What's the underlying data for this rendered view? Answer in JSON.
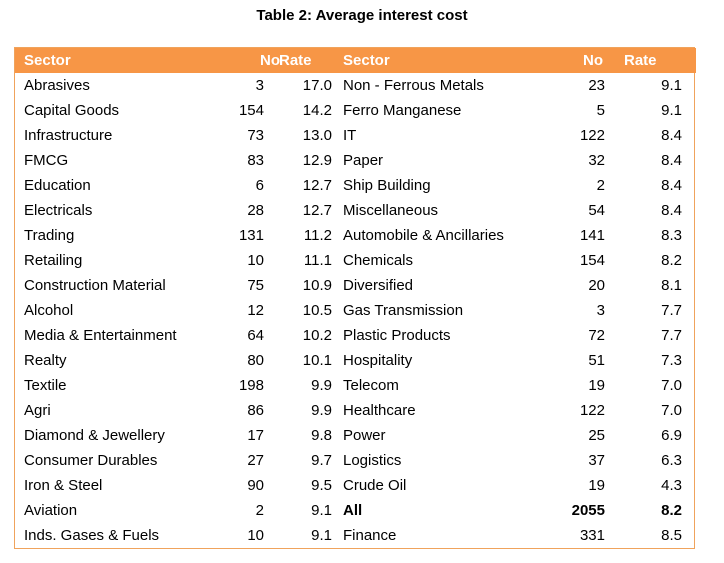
{
  "title": "Table 2: Average interest cost",
  "headers": [
    "Sector",
    "No",
    "Rate",
    "Sector",
    "No",
    "Rate"
  ],
  "rows": [
    [
      "Abrasives",
      "3",
      "17.0",
      "Non - Ferrous Metals",
      "23",
      "9.1"
    ],
    [
      "Capital Goods",
      "154",
      "14.2",
      "Ferro Manganese",
      "5",
      "9.1"
    ],
    [
      "Infrastructure",
      "73",
      "13.0",
      "IT",
      "122",
      "8.4"
    ],
    [
      "FMCG",
      "83",
      "12.9",
      "Paper",
      "32",
      "8.4"
    ],
    [
      "Education",
      "6",
      "12.7",
      "Ship Building",
      "2",
      "8.4"
    ],
    [
      "Electricals",
      "28",
      "12.7",
      "Miscellaneous",
      "54",
      "8.4"
    ],
    [
      "Trading",
      "131",
      "11.2",
      "Automobile & Ancillaries",
      "141",
      "8.3"
    ],
    [
      "Retailing",
      "10",
      "11.1",
      "Chemicals",
      "154",
      "8.2"
    ],
    [
      "Construction Material",
      "75",
      "10.9",
      "Diversified",
      "20",
      "8.1"
    ],
    [
      "Alcohol",
      "12",
      "10.5",
      "Gas Transmission",
      "3",
      "7.7"
    ],
    [
      "Media & Entertainment",
      "64",
      "10.2",
      "Plastic Products",
      "72",
      "7.7"
    ],
    [
      "Realty",
      "80",
      "10.1",
      "Hospitality",
      "51",
      "7.3"
    ],
    [
      "Textile",
      "198",
      "9.9",
      "Telecom",
      "19",
      "7.0"
    ],
    [
      "Agri",
      "86",
      "9.9",
      "Healthcare",
      "122",
      "7.0"
    ],
    [
      "Diamond  &  Jewellery",
      "17",
      "9.8",
      "Power",
      "25",
      "6.9"
    ],
    [
      "Consumer Durables",
      "27",
      "9.7",
      "Logistics",
      "37",
      "6.3"
    ],
    [
      "Iron & Steel",
      "90",
      "9.5",
      "Crude Oil",
      "19",
      "4.3"
    ],
    [
      "Aviation",
      "2",
      "9.1",
      "All",
      "2055",
      "8.2"
    ],
    [
      "Inds. Gases & Fuels",
      "10",
      "9.1",
      "Finance",
      "331",
      "8.5"
    ]
  ],
  "bold_right_row_index": 17,
  "colors": {
    "header_bg": "#f79646",
    "header_text": "#ffffff",
    "border": "#f0a35c"
  }
}
